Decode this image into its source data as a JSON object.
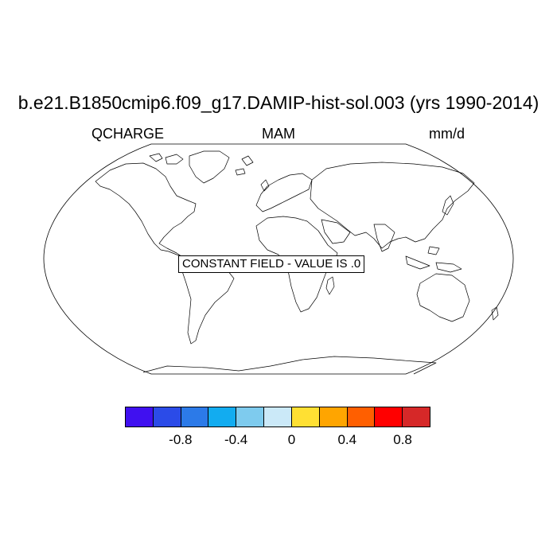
{
  "title": "b.e21.B1850cmip6.f09_g17.DAMIP-hist-sol.003 (yrs 1990-2014)",
  "variable": "QCHARGE",
  "season": "MAM",
  "units": "mm/d",
  "constant_field_label": "CONSTANT FIELD - VALUE IS .0",
  "colorbar": {
    "colors": [
      "#4010f0",
      "#2b4be8",
      "#2c7ae8",
      "#12acf0",
      "#7ecbee",
      "#cbe9f8",
      "#ffe033",
      "#ffa500",
      "#ff5f00",
      "#ff0000",
      "#d62828"
    ],
    "tick_labels": [
      "-0.8",
      "-0.4",
      "0",
      "0.4",
      "0.8"
    ]
  }
}
